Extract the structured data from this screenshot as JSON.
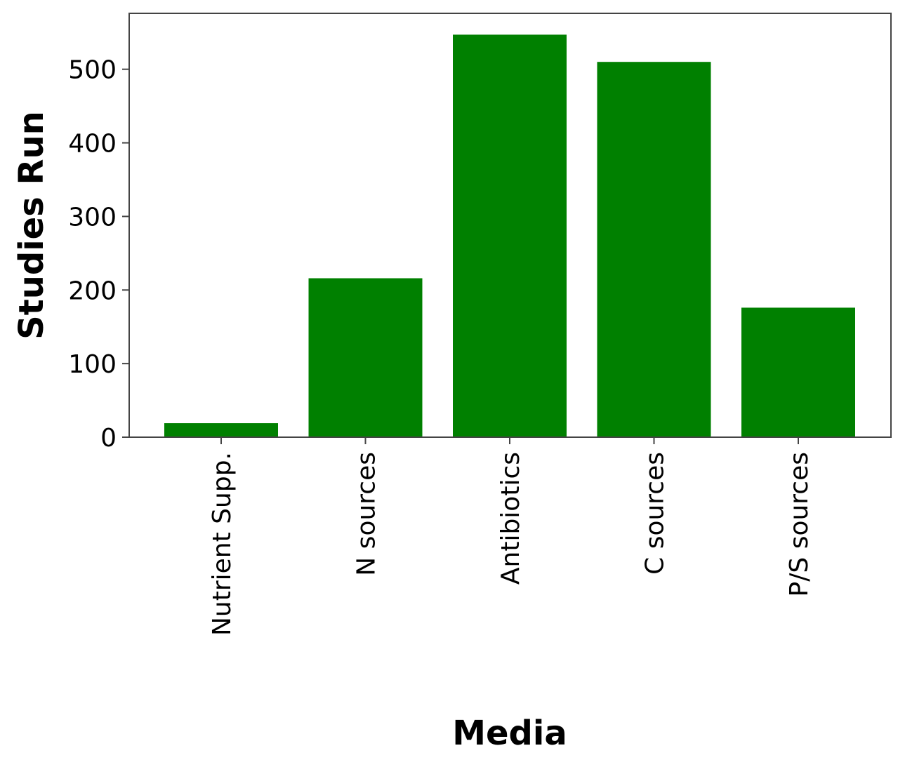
{
  "chart_data": {
    "type": "bar",
    "title": "",
    "xlabel": "Media",
    "ylabel": "Studies Run",
    "categories": [
      "Nutrient Supp.",
      "N sources",
      "Antibiotics",
      "C sources",
      "P/S sources"
    ],
    "values": [
      19,
      216,
      547,
      510,
      176
    ],
    "ylim": [
      0,
      576
    ],
    "yticks": [
      0,
      100,
      200,
      300,
      400,
      500
    ],
    "grid": false,
    "legend": "none",
    "colors": {
      "bar": "#008000",
      "axis": "#444444",
      "text": "#000000"
    }
  }
}
